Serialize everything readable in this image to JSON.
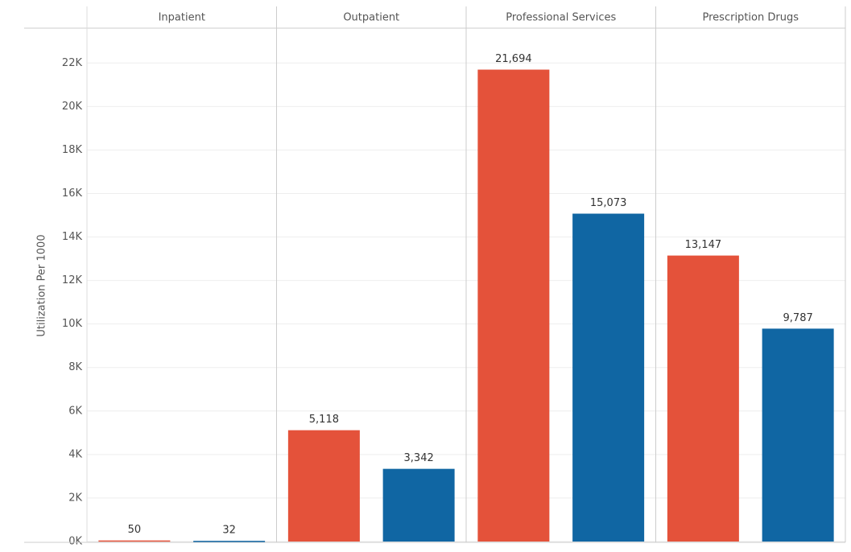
{
  "chart_data": {
    "type": "bar",
    "y_label": "Utilization Per 1000",
    "categories": [
      "Inpatient",
      "Outpatient",
      "Professional Services",
      "Prescription Drugs"
    ],
    "series": [
      {
        "color": "#e4523a",
        "values": [
          50,
          5118,
          21694,
          13147
        ],
        "value_labels": [
          "50",
          "5,118",
          "21,694",
          "13,147"
        ]
      },
      {
        "color": "#1066a3",
        "values": [
          32,
          3342,
          15073,
          9787
        ],
        "value_labels": [
          "32",
          "3,342",
          "15,073",
          "9,787"
        ]
      }
    ],
    "ylim": [
      0,
      23600
    ],
    "yticks": [
      {
        "value": 0,
        "label": "0K"
      },
      {
        "value": 2000,
        "label": "2K"
      },
      {
        "value": 4000,
        "label": "4K"
      },
      {
        "value": 6000,
        "label": "6K"
      },
      {
        "value": 8000,
        "label": "8K"
      },
      {
        "value": 10000,
        "label": "10K"
      },
      {
        "value": 12000,
        "label": "12K"
      },
      {
        "value": 14000,
        "label": "14K"
      },
      {
        "value": 16000,
        "label": "16K"
      },
      {
        "value": 18000,
        "label": "18K"
      },
      {
        "value": 20000,
        "label": "20K"
      },
      {
        "value": 22000,
        "label": "22K"
      }
    ],
    "grid": true
  }
}
